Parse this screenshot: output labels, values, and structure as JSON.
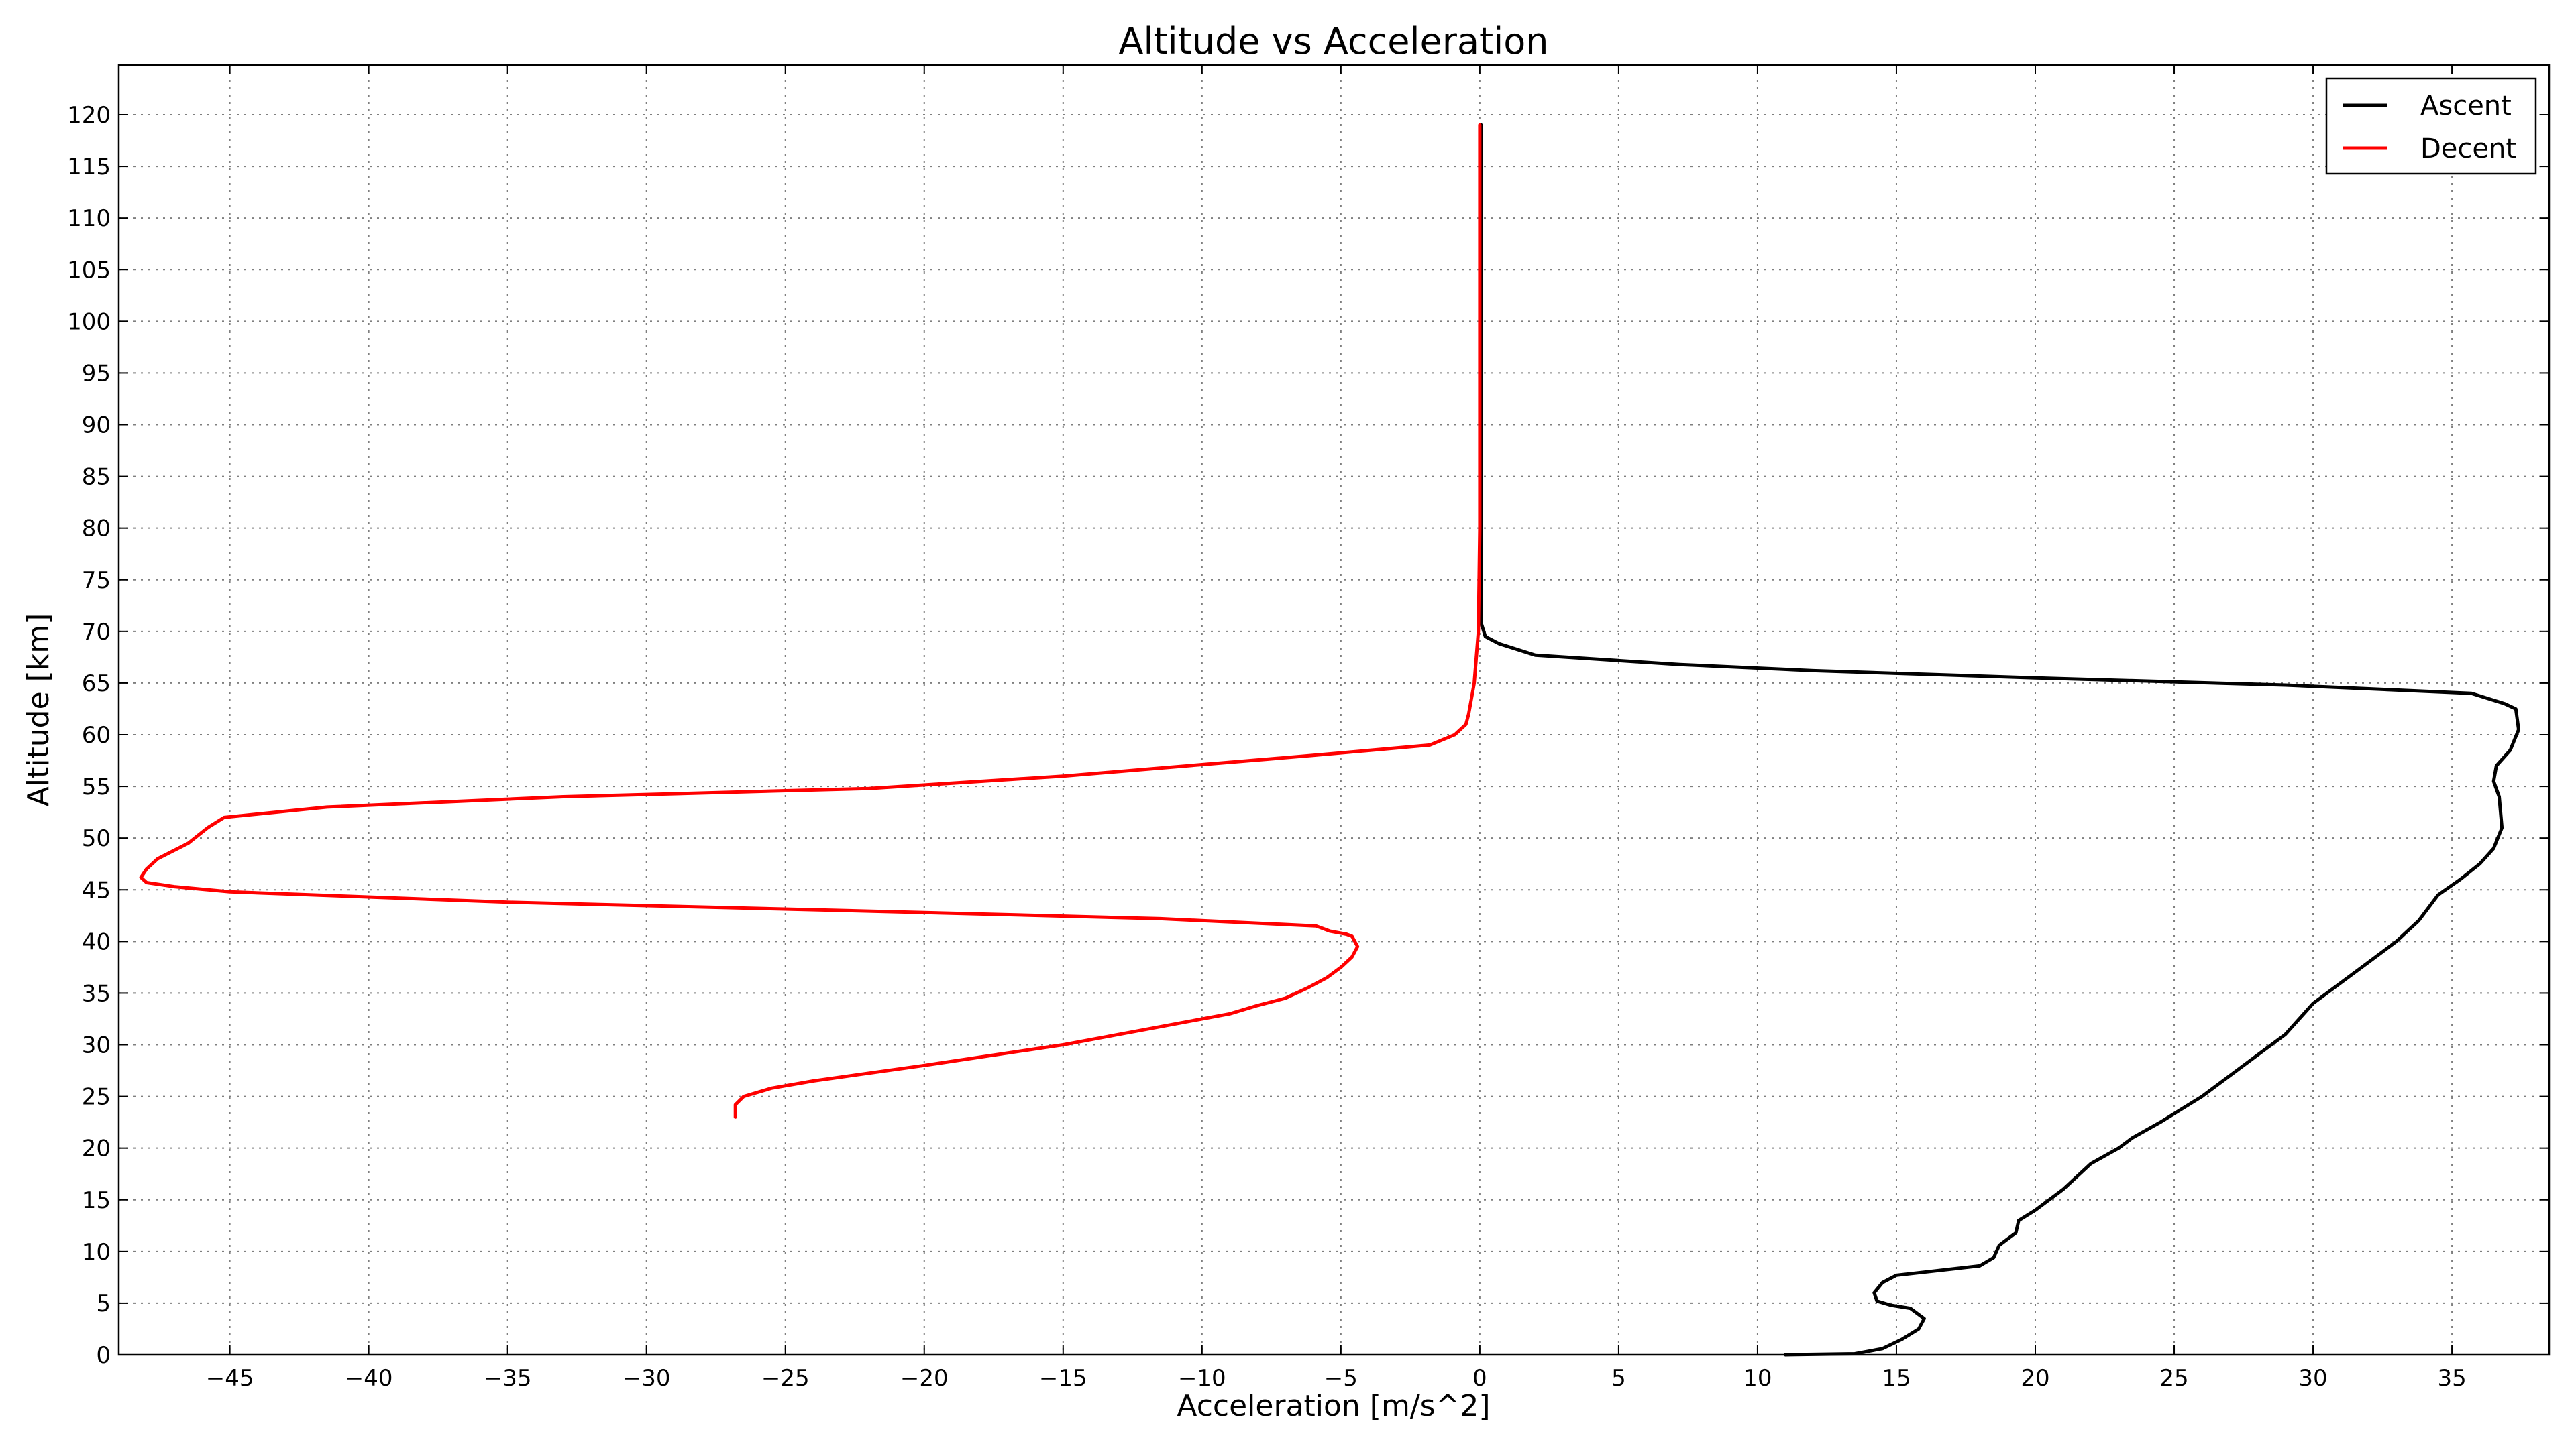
{
  "chart_data": {
    "type": "line",
    "title": "Altitude vs Acceleration",
    "xlabel": "Acceleration [m/s^2]",
    "ylabel": "Altitude [km]",
    "xlim": [
      -49,
      38.5
    ],
    "ylim": [
      0,
      124.8
    ],
    "x_ticks": [
      -45,
      -40,
      -35,
      -30,
      -25,
      -20,
      -15,
      -10,
      -5,
      0,
      5,
      10,
      15,
      20,
      25,
      30,
      35
    ],
    "y_ticks": [
      0,
      5,
      10,
      15,
      20,
      25,
      30,
      35,
      40,
      45,
      50,
      55,
      60,
      65,
      70,
      75,
      80,
      85,
      90,
      95,
      100,
      105,
      110,
      115,
      120
    ],
    "x_tick_labels": [
      "−45",
      "−40",
      "−35",
      "−30",
      "−25",
      "−20",
      "−15",
      "−10",
      "−5",
      "0",
      "5",
      "10",
      "15",
      "20",
      "25",
      "30",
      "35"
    ],
    "y_tick_labels": [
      "0",
      "5",
      "10",
      "15",
      "20",
      "25",
      "30",
      "35",
      "40",
      "45",
      "50",
      "55",
      "60",
      "65",
      "70",
      "75",
      "80",
      "85",
      "90",
      "95",
      "100",
      "105",
      "110",
      "115",
      "120"
    ],
    "grid": true,
    "legend": "top-right",
    "series": [
      {
        "name": "Ascent",
        "color": "#000000",
        "x": [
          11.0,
          13.5,
          14.5,
          15.2,
          15.8,
          16.0,
          15.5,
          14.8,
          14.3,
          14.2,
          14.5,
          15.0,
          16.0,
          18.0,
          18.5,
          18.7,
          19.0,
          19.3,
          19.4,
          20.0,
          21.0,
          22.0,
          23.0,
          23.5,
          24.5,
          26.0,
          27.0,
          28.0,
          29.0,
          30.0,
          31.0,
          32.0,
          33.0,
          33.8,
          34.5,
          35.3,
          36.0,
          36.5,
          36.8,
          36.7,
          36.5,
          36.6,
          37.1,
          37.4,
          37.3,
          36.9,
          35.7,
          29.0,
          20.0,
          12.0,
          7.2,
          2.0,
          0.7,
          0.2,
          0.05,
          0.05,
          0.05,
          0.05,
          0.05
        ],
        "y": [
          0.0,
          0.1,
          0.6,
          1.5,
          2.5,
          3.5,
          4.5,
          4.8,
          5.2,
          6.0,
          7.0,
          7.7,
          8.0,
          8.6,
          9.4,
          10.6,
          11.2,
          11.8,
          13.0,
          14.0,
          16.0,
          18.5,
          20.0,
          21.0,
          22.5,
          25.0,
          27.0,
          29.0,
          31.0,
          34.0,
          36.0,
          38.0,
          40.0,
          42.0,
          44.5,
          46.0,
          47.5,
          49.0,
          51.0,
          54.0,
          55.5,
          57.0,
          58.5,
          60.5,
          62.5,
          63.0,
          64.0,
          64.8,
          65.5,
          66.2,
          66.8,
          67.7,
          68.8,
          69.5,
          70.8,
          75.0,
          85.0,
          100.0,
          119.0
        ]
      },
      {
        "name": "Decent",
        "color": "#ff0000",
        "x": [
          -26.8,
          -26.8,
          -26.5,
          -25.5,
          -24.0,
          -20.0,
          -15.0,
          -13.0,
          -11.0,
          -9.0,
          -8.0,
          -7.0,
          -6.2,
          -5.5,
          -5.0,
          -4.6,
          -4.4,
          -4.6,
          -4.8,
          -5.4,
          -5.9,
          -11.5,
          -20.0,
          -35.0,
          -45.0,
          -47.0,
          -48.0,
          -48.2,
          -48.0,
          -47.6,
          -46.5,
          -45.8,
          -45.2,
          -41.5,
          -33.0,
          -22.0,
          -15.0,
          -6.0,
          -1.8,
          -0.9,
          -0.5,
          -0.4,
          -0.2,
          -0.05,
          0.0,
          0.0,
          0.0
        ],
        "y": [
          23.0,
          24.2,
          25.0,
          25.8,
          26.5,
          28.0,
          30.0,
          31.0,
          32.0,
          33.0,
          33.8,
          34.5,
          35.5,
          36.5,
          37.5,
          38.5,
          39.5,
          40.5,
          40.7,
          41.0,
          41.5,
          42.2,
          42.8,
          43.8,
          44.8,
          45.3,
          45.7,
          46.2,
          47.0,
          48.0,
          49.5,
          51.0,
          52.0,
          53.0,
          54.0,
          54.8,
          56.0,
          58.0,
          59.0,
          60.0,
          61.0,
          62.0,
          65.0,
          70.0,
          80.0,
          100.0,
          119.0
        ]
      }
    ]
  }
}
